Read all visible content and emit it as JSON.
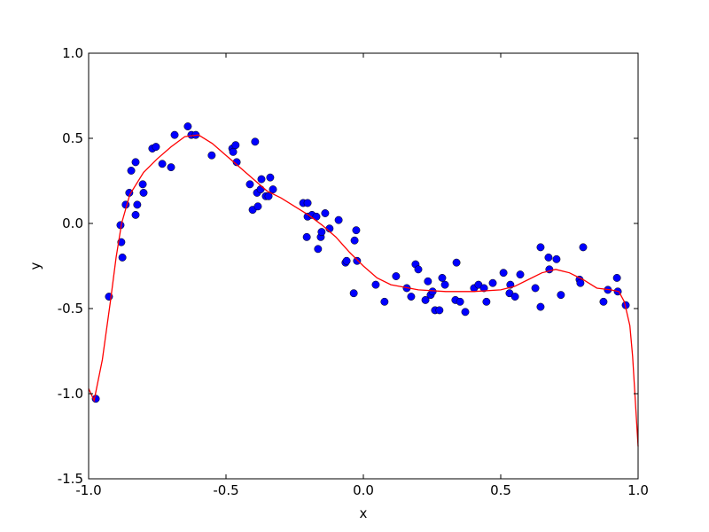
{
  "chart_data": {
    "type": "scatter",
    "xlabel": "x",
    "ylabel": "y",
    "xlim": [
      -1.0,
      1.0
    ],
    "ylim": [
      -1.5,
      1.0
    ],
    "xticks": [
      {
        "value": -1.0,
        "label": "-1.0"
      },
      {
        "value": -0.5,
        "label": "-0.5"
      },
      {
        "value": 0.0,
        "label": "0.0"
      },
      0.5,
      {
        "value": 1.0,
        "label": "1.0"
      }
    ],
    "yticks": [
      {
        "value": -1.5,
        "label": "-1.5"
      },
      {
        "value": -1.0,
        "label": "-1.0"
      },
      {
        "value": -0.5,
        "label": "-0.5"
      },
      {
        "value": 0.0,
        "label": "0.0"
      },
      0.5,
      {
        "value": 1.0,
        "label": "1.0"
      }
    ],
    "series": [
      {
        "type": "scatter",
        "color": "#0000ff",
        "x": [
          -0.974,
          -0.926,
          -0.884,
          -0.881,
          -0.877,
          -0.865,
          -0.852,
          -0.845,
          -0.829,
          -0.829,
          -0.823,
          -0.803,
          -0.8,
          -0.768,
          -0.755,
          -0.732,
          -0.7,
          -0.687,
          -0.639,
          -0.626,
          -0.61,
          -0.552,
          -0.477,
          -0.474,
          -0.465,
          -0.461,
          -0.413,
          -0.403,
          -0.394,
          -0.387,
          -0.384,
          -0.374,
          -0.371,
          -0.355,
          -0.345,
          -0.339,
          -0.329,
          -0.219,
          -0.203,
          -0.206,
          -0.203,
          -0.187,
          -0.171,
          -0.165,
          -0.155,
          -0.152,
          -0.139,
          -0.123,
          -0.09,
          -0.065,
          -0.061,
          -0.035,
          -0.032,
          -0.026,
          -0.023,
          0.045,
          0.077,
          0.119,
          0.158,
          0.174,
          0.19,
          0.2,
          0.226,
          0.235,
          0.245,
          0.252,
          0.261,
          0.277,
          0.287,
          0.297,
          0.339,
          0.335,
          0.352,
          0.371,
          0.403,
          0.419,
          0.439,
          0.448,
          0.471,
          0.51,
          0.532,
          0.535,
          0.552,
          0.571,
          0.626,
          0.645,
          0.645,
          0.674,
          0.677,
          0.703,
          0.719,
          0.787,
          0.79,
          0.8,
          0.874,
          0.89,
          0.923,
          0.926,
          0.955
        ],
        "values": [
          -1.03,
          -0.43,
          -0.01,
          -0.11,
          -0.2,
          0.11,
          0.18,
          0.31,
          0.36,
          0.05,
          0.11,
          0.23,
          0.18,
          0.44,
          0.45,
          0.35,
          0.33,
          0.52,
          0.57,
          0.52,
          0.52,
          0.4,
          0.44,
          0.42,
          0.46,
          0.36,
          0.23,
          0.08,
          0.48,
          0.18,
          0.1,
          0.2,
          0.26,
          0.16,
          0.16,
          0.27,
          0.2,
          0.12,
          0.12,
          -0.08,
          0.04,
          0.05,
          0.04,
          -0.15,
          -0.08,
          -0.05,
          0.06,
          -0.03,
          0.02,
          -0.23,
          -0.22,
          -0.41,
          -0.1,
          -0.04,
          -0.22,
          -0.36,
          -0.46,
          -0.31,
          -0.38,
          -0.43,
          -0.24,
          -0.27,
          -0.45,
          -0.34,
          -0.42,
          -0.4,
          -0.51,
          -0.51,
          -0.32,
          -0.36,
          -0.23,
          -0.45,
          -0.46,
          -0.52,
          -0.38,
          -0.36,
          -0.38,
          -0.46,
          -0.35,
          -0.29,
          -0.41,
          -0.36,
          -0.43,
          -0.3,
          -0.38,
          -0.14,
          -0.49,
          -0.2,
          -0.27,
          -0.21,
          -0.42,
          -0.33,
          -0.35,
          -0.14,
          -0.46,
          -0.39,
          -0.32,
          -0.4,
          -0.48
        ]
      },
      {
        "type": "line",
        "color": "#ff0000",
        "x": [
          -1.0,
          -0.98,
          -0.95,
          -0.92,
          -0.9,
          -0.88,
          -0.85,
          -0.8,
          -0.75,
          -0.7,
          -0.65,
          -0.6,
          -0.55,
          -0.5,
          -0.45,
          -0.4,
          -0.35,
          -0.3,
          -0.25,
          -0.2,
          -0.15,
          -0.1,
          -0.05,
          0.0,
          0.05,
          0.1,
          0.2,
          0.3,
          0.4,
          0.5,
          0.55,
          0.6,
          0.65,
          0.7,
          0.75,
          0.8,
          0.85,
          0.9,
          0.93,
          0.95,
          0.97,
          0.98,
          1.0
        ],
        "values": [
          -0.97,
          -1.04,
          -0.8,
          -0.45,
          -0.2,
          0.0,
          0.17,
          0.3,
          0.38,
          0.45,
          0.51,
          0.52,
          0.47,
          0.4,
          0.33,
          0.26,
          0.19,
          0.15,
          0.1,
          0.05,
          -0.01,
          -0.08,
          -0.17,
          -0.25,
          -0.32,
          -0.36,
          -0.39,
          -0.4,
          -0.4,
          -0.39,
          -0.37,
          -0.33,
          -0.29,
          -0.27,
          -0.29,
          -0.33,
          -0.38,
          -0.39,
          -0.4,
          -0.46,
          -0.6,
          -0.78,
          -1.31
        ]
      }
    ]
  }
}
